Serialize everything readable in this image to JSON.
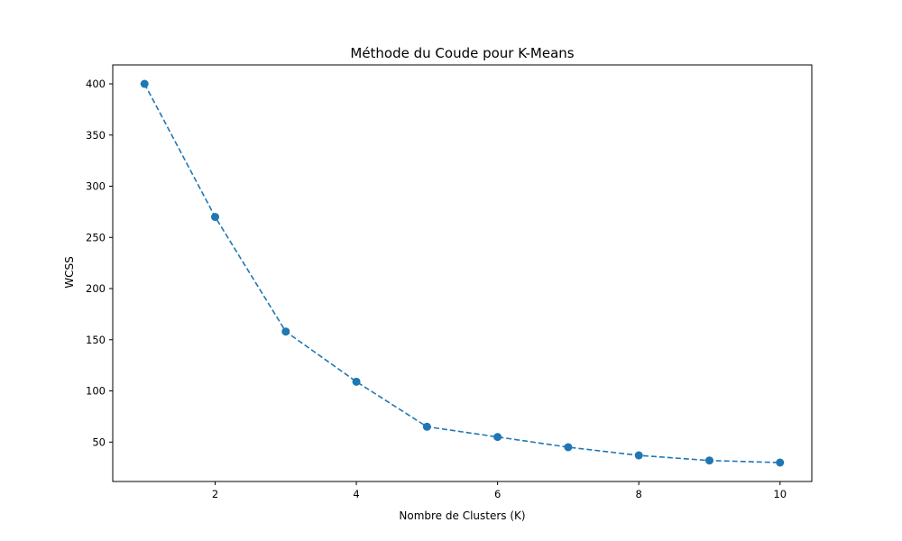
{
  "chart_data": {
    "type": "line",
    "title": "Méthode du Coude pour K-Means",
    "xlabel": "Nombre de Clusters (K)",
    "ylabel": "WCSS",
    "x": [
      1,
      2,
      3,
      4,
      5,
      6,
      7,
      8,
      9,
      10
    ],
    "series": [
      {
        "values": [
          400,
          270,
          158,
          109,
          65,
          55,
          45,
          37,
          32,
          30
        ],
        "color": "#1f77b4",
        "line_style": "dashed",
        "marker": "circle"
      }
    ],
    "xlim": [
      0.55,
      10.45
    ],
    "ylim": [
      11.5,
      418.5
    ],
    "x_ticks": [
      2,
      4,
      6,
      8,
      10
    ],
    "y_ticks": [
      50,
      100,
      150,
      200,
      250,
      300,
      350,
      400
    ],
    "grid": false,
    "legend": "none"
  }
}
